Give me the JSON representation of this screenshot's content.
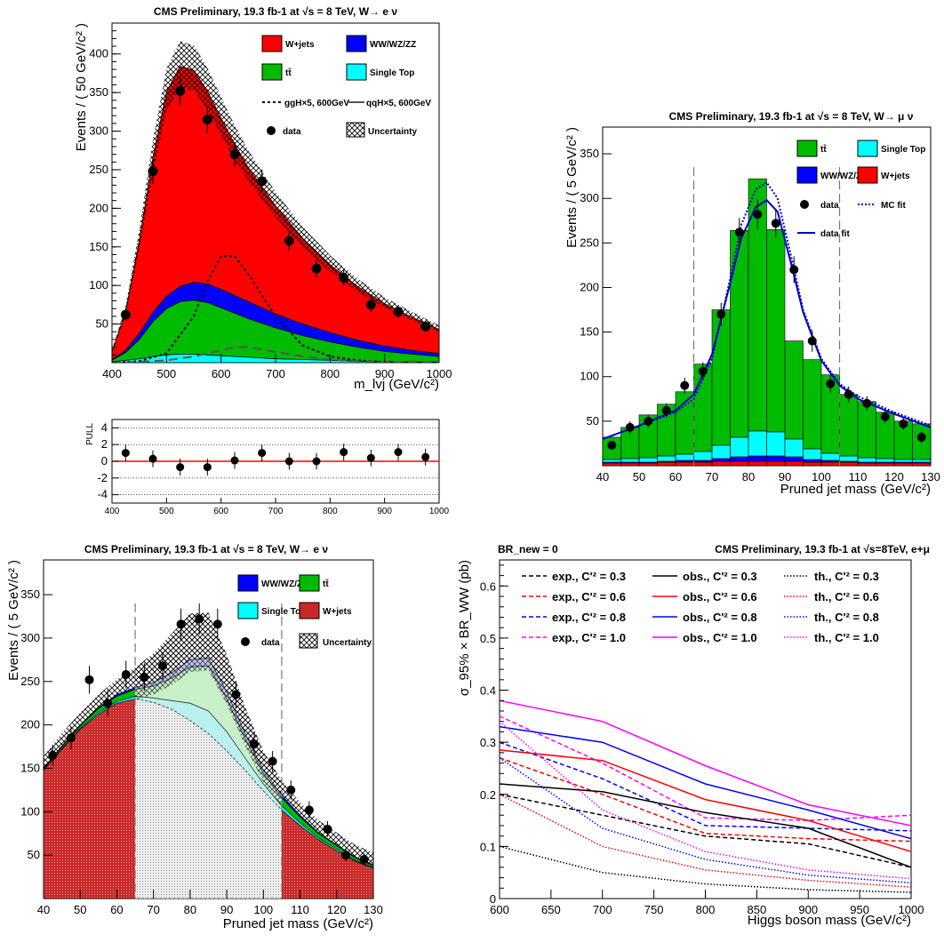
{
  "chart_data": [
    {
      "id": "p1",
      "type": "area",
      "title": "CMS Preliminary, 19.3 fb-1 at √s = 8 TeV, W→ e ν",
      "xlabel": "m_lvj (GeV/c²)",
      "ylabel": "Events / ( 50 GeV/c² )",
      "xlim": [
        400,
        1000
      ],
      "ylim": [
        0,
        440
      ],
      "xticks": [
        "400",
        "500",
        "600",
        "700",
        "800",
        "900",
        "1000"
      ],
      "yticks": [
        "50",
        "100",
        "150",
        "200",
        "250",
        "300",
        "350",
        "400"
      ],
      "legend": [
        "W+jets",
        "WW/WZ/ZZ",
        "tt̄",
        "Single Top",
        "ggH×5, 600GeV",
        "qqH×5, 600GeV",
        "data",
        "Uncertainty"
      ],
      "x": [
        400,
        425,
        450,
        475,
        500,
        525,
        550,
        575,
        600,
        625,
        650,
        700,
        750,
        800,
        850,
        900,
        950,
        1000
      ],
      "series": [
        {
          "name": "Single Top",
          "values": [
            1,
            3,
            5,
            8,
            10,
            11,
            11,
            10,
            9,
            8,
            7,
            5,
            4,
            3,
            2,
            1.5,
            1,
            1
          ]
        },
        {
          "name": "tt̄",
          "values": [
            2,
            10,
            25,
            45,
            60,
            68,
            70,
            68,
            62,
            56,
            50,
            40,
            31,
            24,
            18,
            13,
            10,
            7
          ]
        },
        {
          "name": "WW/WZ/ZZ",
          "values": [
            1,
            3,
            8,
            12,
            16,
            20,
            23,
            24,
            24,
            23,
            22,
            18,
            15,
            12,
            9,
            7,
            5,
            4
          ]
        },
        {
          "name": "W+jets",
          "values": [
            10,
            50,
            120,
            200,
            265,
            285,
            275,
            250,
            222,
            196,
            174,
            140,
            111,
            88,
            70,
            55,
            43,
            31
          ]
        }
      ],
      "signal_ggH": {
        "x": [
          400,
          450,
          500,
          550,
          575,
          600,
          625,
          650,
          700,
          750,
          800,
          850,
          900,
          950,
          1000
        ],
        "y": [
          0,
          2,
          12,
          60,
          105,
          138,
          138,
          115,
          60,
          22,
          8,
          3,
          1,
          0,
          0
        ]
      },
      "signal_qqH": {
        "x": [
          400,
          450,
          500,
          550,
          600,
          625,
          650,
          700,
          750,
          800,
          850,
          900,
          950,
          1000
        ],
        "y": [
          0,
          1,
          3,
          8,
          16,
          20,
          20,
          14,
          8,
          4,
          2,
          1,
          0,
          0
        ]
      },
      "data": {
        "x": [
          425,
          475,
          525,
          575,
          625,
          675,
          725,
          775,
          825,
          875,
          925,
          975
        ],
        "y": [
          62,
          248,
          352,
          315,
          270,
          235,
          158,
          122,
          110,
          75,
          66,
          47
        ],
        "err": [
          8,
          16,
          19,
          18,
          16,
          15,
          13,
          11,
          10,
          9,
          8,
          7
        ]
      }
    },
    {
      "id": "pull",
      "type": "scatter",
      "ylabel": "PULL",
      "xlim": [
        400,
        1000
      ],
      "ylim": [
        -5,
        5
      ],
      "xticks": [
        "400",
        "500",
        "600",
        "700",
        "800",
        "900",
        "1000"
      ],
      "yticks": [
        "-4",
        "-2",
        "0",
        "2",
        "4"
      ],
      "x": [
        425,
        475,
        525,
        575,
        625,
        675,
        725,
        775,
        825,
        875,
        925,
        975
      ],
      "y": [
        1.0,
        0.3,
        -0.7,
        -0.7,
        0.1,
        1.0,
        0.0,
        0.0,
        1.1,
        0.4,
        1.1,
        0.5
      ],
      "err": [
        1,
        1,
        1,
        1,
        1,
        1,
        1,
        1,
        1,
        1,
        1,
        1
      ]
    },
    {
      "id": "p2",
      "type": "bar",
      "title": "CMS Preliminary, 19.3 fb-1 at √s = 8 TeV, W→ μ ν",
      "xlabel": "Pruned jet mass (GeV/c²)",
      "ylabel": "Events / ( 5 GeV/c² )",
      "xlim": [
        40,
        130
      ],
      "ylim": [
        0,
        380
      ],
      "xticks": [
        "40",
        "50",
        "60",
        "70",
        "80",
        "90",
        "100",
        "110",
        "120",
        "130"
      ],
      "yticks": [
        "50",
        "100",
        "150",
        "200",
        "250",
        "300",
        "350"
      ],
      "legend": [
        "tt̄",
        "Single Top",
        "WW/WZ/ZZ",
        "W+jets",
        "data",
        "MC fit",
        "data fit"
      ],
      "bin_edges": [
        40,
        45,
        50,
        55,
        60,
        65,
        70,
        75,
        80,
        85,
        90,
        95,
        100,
        105,
        110,
        115,
        120,
        125,
        130
      ],
      "stack": [
        {
          "name": "W+jets",
          "values": [
            3,
            3,
            3,
            4,
            4,
            4,
            5,
            5,
            5,
            5,
            5,
            4,
            4,
            4,
            3,
            3,
            3,
            3
          ]
        },
        {
          "name": "WW/WZ/ZZ",
          "values": [
            1,
            1,
            1,
            1,
            2,
            2,
            3,
            5,
            6,
            6,
            5,
            3,
            2,
            1,
            1,
            1,
            1,
            1
          ]
        },
        {
          "name": "Single Top",
          "values": [
            3,
            4,
            5,
            6,
            7,
            10,
            15,
            22,
            28,
            27,
            20,
            12,
            8,
            6,
            5,
            4,
            3,
            3
          ]
        },
        {
          "name": "tt̄",
          "values": [
            25,
            35,
            48,
            58,
            70,
            98,
            152,
            232,
            283,
            227,
            110,
            100,
            88,
            69,
            63,
            52,
            43,
            40
          ]
        }
      ],
      "vlines": [
        65,
        105
      ],
      "data": {
        "x": [
          42.5,
          47.5,
          52.5,
          57.5,
          62.5,
          67.5,
          72.5,
          77.5,
          82.5,
          87.5,
          92.5,
          97.5,
          102.5,
          107.5,
          112.5,
          117.5,
          122.5,
          127.5
        ],
        "y": [
          23,
          43,
          50,
          62,
          90,
          106,
          170,
          262,
          282,
          272,
          220,
          140,
          92,
          80,
          70,
          55,
          47,
          32
        ],
        "err": [
          5,
          7,
          7,
          8,
          9,
          10,
          13,
          16,
          17,
          16,
          15,
          12,
          10,
          9,
          8,
          7,
          7,
          6
        ]
      },
      "mc_fit": {
        "x": [
          40,
          50,
          60,
          65,
          70,
          75,
          78,
          82,
          85,
          88,
          92,
          95,
          100,
          105,
          110,
          120,
          130
        ],
        "y": [
          30,
          45,
          60,
          75,
          120,
          210,
          270,
          310,
          318,
          300,
          230,
          175,
          120,
          92,
          78,
          60,
          45
        ]
      },
      "data_fit": {
        "x": [
          40,
          50,
          60,
          65,
          70,
          75,
          78,
          82,
          85,
          88,
          92,
          95,
          100,
          105,
          110,
          120,
          130
        ],
        "y": [
          30,
          45,
          62,
          80,
          125,
          205,
          255,
          290,
          298,
          285,
          222,
          172,
          118,
          90,
          75,
          58,
          43
        ]
      }
    },
    {
      "id": "p3",
      "type": "area",
      "title": "CMS Preliminary, 19.3 fb-1 at √s = 8 TeV, W→ e ν",
      "xlabel": "Pruned jet mass (GeV/c²)",
      "ylabel": "Events / ( 5 GeV/c² )",
      "xlim": [
        40,
        130
      ],
      "ylim": [
        0,
        390
      ],
      "xticks": [
        "40",
        "50",
        "60",
        "70",
        "80",
        "90",
        "100",
        "110",
        "120",
        "130"
      ],
      "yticks": [
        "50",
        "100",
        "150",
        "200",
        "250",
        "300",
        "350"
      ],
      "legend": [
        "WW/WZ/ZZ",
        "tt̄",
        "Single Top",
        "W+jets",
        "data",
        "Uncertainty"
      ],
      "x": [
        40,
        45,
        50,
        55,
        60,
        65,
        70,
        75,
        80,
        85,
        90,
        95,
        100,
        105,
        110,
        115,
        120,
        125,
        130
      ],
      "series": [
        {
          "name": "W+jets",
          "values": [
            148,
            172,
            195,
            212,
            225,
            230,
            226,
            218,
            205,
            190,
            170,
            148,
            124,
            102,
            84,
            68,
            55,
            43,
            35
          ]
        },
        {
          "name": "Single Top",
          "values": [
            1,
            1,
            1,
            2,
            2,
            3,
            5,
            10,
            20,
            26,
            22,
            14,
            8,
            5,
            3,
            2,
            2,
            1,
            1
          ]
        },
        {
          "name": "tt̄",
          "values": [
            1,
            2,
            3,
            5,
            6,
            8,
            14,
            26,
            42,
            52,
            38,
            22,
            12,
            9,
            7,
            5,
            4,
            3,
            2
          ]
        },
        {
          "name": "WW/WZ/ZZ",
          "values": [
            0,
            1,
            1,
            1,
            2,
            2,
            4,
            6,
            8,
            9,
            8,
            6,
            4,
            3,
            2,
            1,
            1,
            1,
            1
          ]
        }
      ],
      "vlines": [
        65,
        105
      ],
      "data": {
        "x": [
          42.5,
          47.5,
          52.5,
          57.5,
          62.5,
          67.5,
          72.5,
          77.5,
          82.5,
          87.5,
          92.5,
          97.5,
          102.5,
          107.5,
          112.5,
          117.5,
          122.5,
          127.5
        ],
        "y": [
          165,
          185,
          252,
          225,
          258,
          255,
          268,
          316,
          322,
          316,
          235,
          178,
          158,
          125,
          102,
          80,
          50,
          45
        ],
        "err": [
          12,
          13,
          16,
          15,
          16,
          16,
          16,
          18,
          18,
          18,
          15,
          13,
          12,
          11,
          10,
          9,
          7,
          7
        ]
      }
    },
    {
      "id": "p4",
      "type": "line",
      "title": "CMS Preliminary, 19.3 fb-1 at √s=8TeV, e+μ",
      "title_left": "BR_new = 0",
      "xlabel": "Higgs boson mass (GeV/c²)",
      "ylabel": "σ_95% × BR_WW (pb)",
      "xlim": [
        600,
        1000
      ],
      "ylim": [
        0,
        0.65
      ],
      "xticks": [
        "600",
        "650",
        "700",
        "750",
        "800",
        "850",
        "900",
        "950",
        "1000"
      ],
      "yticks": [
        "0",
        "0.1",
        "0.2",
        "0.3",
        "0.4",
        "0.5",
        "0.6"
      ],
      "x": [
        600,
        700,
        800,
        900,
        1000
      ],
      "series": [
        {
          "name": "exp., C'² = 0.3",
          "kind": "exp",
          "color": "#000000",
          "values": [
            0.2,
            0.16,
            0.12,
            0.105,
            0.06
          ]
        },
        {
          "name": "exp., C'² = 0.6",
          "kind": "exp",
          "color": "#ff0000",
          "values": [
            0.27,
            0.2,
            0.125,
            0.115,
            0.11
          ]
        },
        {
          "name": "exp., C'² = 0.8",
          "kind": "exp",
          "color": "#0000ff",
          "values": [
            0.3,
            0.23,
            0.14,
            0.135,
            0.13
          ]
        },
        {
          "name": "exp., C'² = 1.0",
          "kind": "exp",
          "color": "#ff00ff",
          "values": [
            0.35,
            0.26,
            0.155,
            0.15,
            0.16
          ]
        },
        {
          "name": "obs., C'² = 0.3",
          "kind": "obs",
          "color": "#000000",
          "values": [
            0.22,
            0.205,
            0.165,
            0.135,
            0.06
          ]
        },
        {
          "name": "obs., C'² = 0.6",
          "kind": "obs",
          "color": "#ff0000",
          "values": [
            0.285,
            0.265,
            0.19,
            0.15,
            0.09
          ]
        },
        {
          "name": "obs., C'² = 0.8",
          "kind": "obs",
          "color": "#0000ff",
          "values": [
            0.33,
            0.3,
            0.22,
            0.17,
            0.115
          ]
        },
        {
          "name": "obs., C'² = 1.0",
          "kind": "obs",
          "color": "#ff00ff",
          "values": [
            0.38,
            0.34,
            0.255,
            0.18,
            0.14
          ]
        },
        {
          "name": "th., C'² = 0.3",
          "kind": "th",
          "color": "#000000",
          "values": [
            0.1,
            0.05,
            0.028,
            0.017,
            0.012
          ]
        },
        {
          "name": "th., C'² = 0.6",
          "kind": "th",
          "color": "#ff0000",
          "values": [
            0.2,
            0.1,
            0.055,
            0.035,
            0.022
          ]
        },
        {
          "name": "th., C'² = 0.8",
          "kind": "th",
          "color": "#0000ff",
          "values": [
            0.27,
            0.135,
            0.075,
            0.045,
            0.03
          ]
        },
        {
          "name": "th., C'² = 1.0",
          "kind": "th",
          "color": "#ff00ff",
          "values": [
            0.34,
            0.17,
            0.09,
            0.055,
            0.038
          ]
        }
      ]
    }
  ],
  "colors": {
    "wjets": "#ff0000",
    "wjets_p3": "#c82828",
    "diboson": "#0000ff",
    "ttbar": "#00bb00",
    "singletop": "#00ffff",
    "fit": "#0000cc"
  }
}
